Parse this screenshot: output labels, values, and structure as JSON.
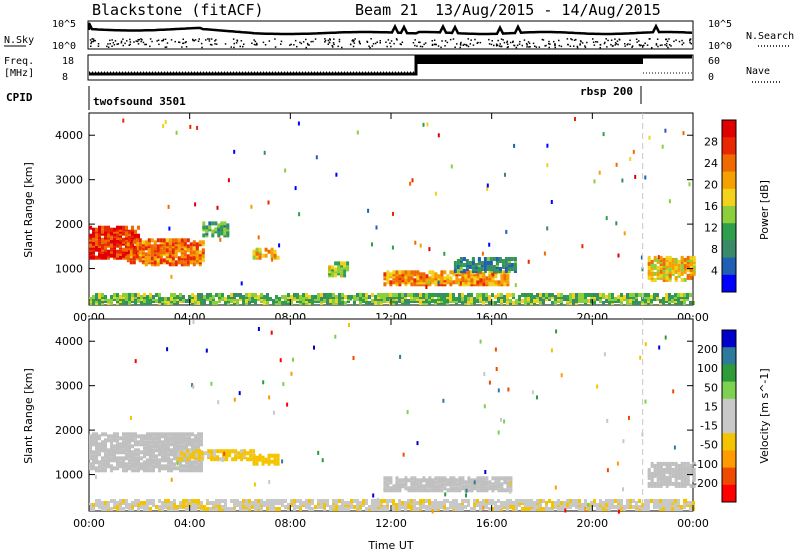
{
  "header": {
    "radar": "Blackstone (fitACF)",
    "beam": "Beam 21",
    "date_range": "13/Aug/2015 - 14/Aug/2015"
  },
  "status_panels": {
    "nsky_label": "N.Sky",
    "nsky_ticks": [
      "10^5",
      "10^0"
    ],
    "nsearch_label": "N.Search",
    "nsearch_ticks": [
      "10^5",
      "10^0"
    ],
    "freq_label": "Freq.",
    "freq_unit": "[MHz]",
    "freq_ticks": [
      "18",
      "8"
    ],
    "nave_label": "Nave",
    "nave_ticks": [
      "60",
      "0"
    ],
    "cpid_label": "CPID",
    "cpid_programs": [
      {
        "name": "twofsound 3501",
        "start_hour": 0
      },
      {
        "name": "rbsp 200",
        "start_hour": 22
      }
    ]
  },
  "colors": {
    "power_scale": [
      "#0000ff",
      "#1f5fb4",
      "#3a8a6a",
      "#2e9e4e",
      "#8ccf3a",
      "#f2d21a",
      "#f5a000",
      "#f06a00",
      "#e82800",
      "#e00000"
    ],
    "velocity_scale": [
      "#ff0000",
      "#f04a00",
      "#ff9a00",
      "#f5c400",
      "#c8c8c8",
      "#c8c8c8",
      "#7ed050",
      "#2e9a3a",
      "#2e7a9a",
      "#0000cc"
    ],
    "ground_scatter": "#c0c0c0"
  },
  "chart_data": [
    {
      "type": "heatmap",
      "name": "power",
      "ylabel": "Slant Range [km]",
      "xlabel": "",
      "x_ticks": [
        "00:00",
        "04:00",
        "08:00",
        "12:00",
        "16:00",
        "20:00",
        "00:00"
      ],
      "xlim_hours": [
        0,
        24
      ],
      "y_ticks": [
        1000,
        2000,
        3000,
        4000
      ],
      "ylim_km": [
        180,
        4500
      ],
      "colorbar": {
        "label": "Power [dB]",
        "ticks": [
          4,
          8,
          12,
          16,
          20,
          24,
          28
        ],
        "range": [
          0,
          30
        ]
      },
      "features": [
        {
          "from_h": 0.0,
          "to_h": 2.0,
          "range_km": [
            1200,
            1900
          ],
          "level": 26
        },
        {
          "from_h": 1.5,
          "to_h": 4.5,
          "range_km": [
            1050,
            1600
          ],
          "level": 22
        },
        {
          "from_h": 4.5,
          "to_h": 5.5,
          "range_km": [
            1700,
            2000
          ],
          "level": 10
        },
        {
          "from_h": 6.5,
          "to_h": 7.5,
          "range_km": [
            1200,
            1400
          ],
          "level": 18
        },
        {
          "from_h": 9.5,
          "to_h": 10.3,
          "range_km": [
            800,
            1100
          ],
          "level": 14
        },
        {
          "from_h": 11.7,
          "to_h": 16.7,
          "range_km": [
            600,
            900
          ],
          "level": 20
        },
        {
          "from_h": 14.5,
          "to_h": 17.0,
          "range_km": [
            900,
            1200
          ],
          "level": 8
        },
        {
          "from_h": 22.2,
          "to_h": 24.0,
          "range_km": [
            700,
            1200
          ],
          "level": 18
        },
        {
          "from_h": 0.0,
          "to_h": 24.0,
          "range_km": [
            180,
            400
          ],
          "level": 12
        }
      ]
    },
    {
      "type": "heatmap",
      "name": "velocity",
      "ylabel": "Slant Range [km]",
      "xlabel": "Time UT",
      "x_ticks": [
        "00:00",
        "04:00",
        "08:00",
        "12:00",
        "16:00",
        "20:00",
        "00:00"
      ],
      "xlim_hours": [
        0,
        24
      ],
      "y_ticks": [
        1000,
        2000,
        3000,
        4000
      ],
      "ylim_km": [
        180,
        4500
      ],
      "colorbar": {
        "label": "Velocity [m s^-1]",
        "ticks": [
          200,
          100,
          50,
          15,
          -15,
          -50,
          -100,
          -200
        ],
        "range": [
          -250,
          250
        ]
      },
      "features": [
        {
          "from_h": 0.0,
          "to_h": 4.5,
          "range_km": [
            1050,
            1900
          ],
          "level": 0,
          "ground_scatter": true
        },
        {
          "from_h": 3.5,
          "to_h": 6.5,
          "range_km": [
            1300,
            1500
          ],
          "level": -60
        },
        {
          "from_h": 6.5,
          "to_h": 7.5,
          "range_km": [
            1200,
            1400
          ],
          "level": -80
        },
        {
          "from_h": 11.7,
          "to_h": 16.8,
          "range_km": [
            600,
            900
          ],
          "level": 0,
          "ground_scatter": true
        },
        {
          "from_h": 22.2,
          "to_h": 24.0,
          "range_km": [
            700,
            1200
          ],
          "level": 0,
          "ground_scatter": true
        },
        {
          "from_h": 0.0,
          "to_h": 24.0,
          "range_km": [
            180,
            400
          ],
          "level": -40
        }
      ]
    }
  ]
}
